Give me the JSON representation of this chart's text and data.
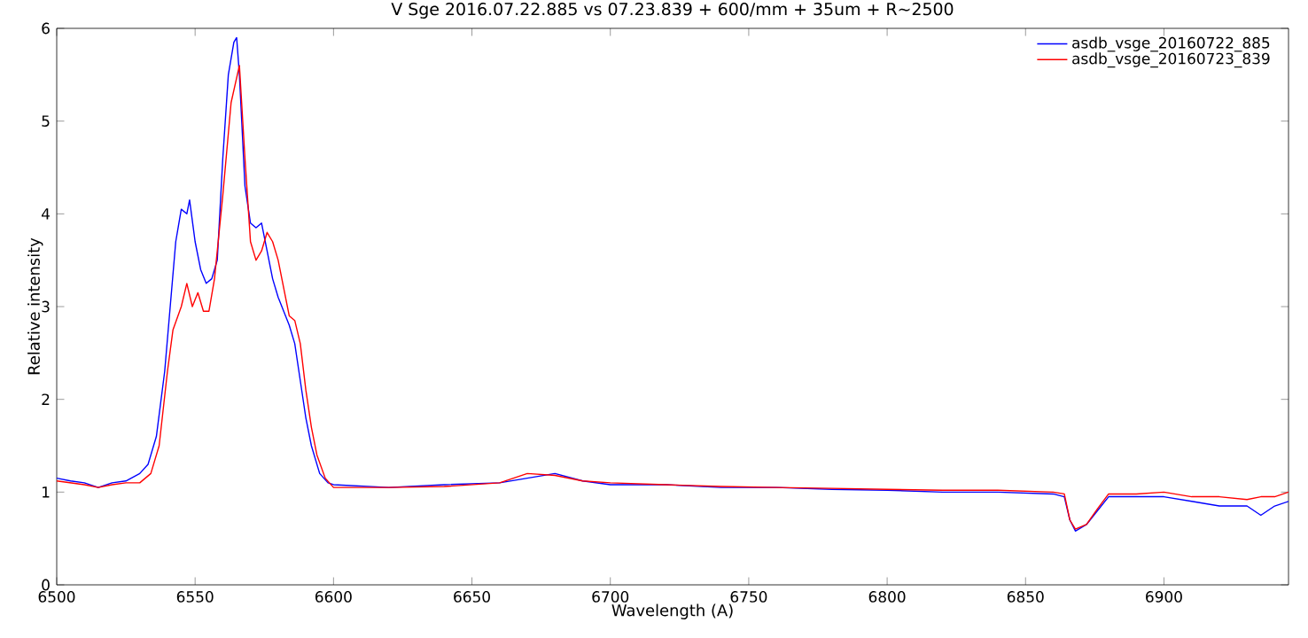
{
  "chart_data": {
    "type": "line",
    "title": "V Sge 2016.07.22.885 vs 07.23.839 + 600/mm + 35um + R~2500",
    "xlabel": "Wavelength (A)",
    "ylabel": "Relative intensity",
    "xlim": [
      6500,
      6945
    ],
    "ylim": [
      0,
      6
    ],
    "xticks": [
      6500,
      6550,
      6600,
      6650,
      6700,
      6750,
      6800,
      6850,
      6900
    ],
    "yticks": [
      0,
      1,
      2,
      3,
      4,
      5,
      6
    ],
    "legend": "top right",
    "grid": false,
    "marker": "none",
    "line_style": "solid",
    "series": [
      {
        "name": "asdb_vsge_20160722_885",
        "color": "#0000ff",
        "x": [
          6500,
          6505,
          6510,
          6515,
          6520,
          6525,
          6530,
          6533,
          6536,
          6539,
          6541,
          6543,
          6545,
          6547,
          6548,
          6550,
          6552,
          6554,
          6556,
          6558,
          6560,
          6562,
          6564,
          6565,
          6566,
          6568,
          6570,
          6572,
          6574,
          6576,
          6578,
          6580,
          6582,
          6584,
          6586,
          6588,
          6590,
          6592,
          6595,
          6598,
          6600,
          6620,
          6640,
          6660,
          6670,
          6680,
          6690,
          6700,
          6720,
          6740,
          6760,
          6780,
          6800,
          6820,
          6840,
          6860,
          6864,
          6866,
          6868,
          6872,
          6876,
          6880,
          6890,
          6900,
          6910,
          6920,
          6930,
          6935,
          6940,
          6945
        ],
        "values": [
          1.15,
          1.12,
          1.1,
          1.05,
          1.1,
          1.12,
          1.2,
          1.3,
          1.6,
          2.3,
          3.0,
          3.7,
          4.05,
          4.0,
          4.15,
          3.7,
          3.4,
          3.25,
          3.3,
          3.5,
          4.6,
          5.5,
          5.85,
          5.9,
          5.5,
          4.3,
          3.9,
          3.85,
          3.9,
          3.6,
          3.3,
          3.1,
          2.95,
          2.8,
          2.6,
          2.2,
          1.8,
          1.5,
          1.2,
          1.1,
          1.08,
          1.05,
          1.08,
          1.1,
          1.15,
          1.2,
          1.12,
          1.08,
          1.08,
          1.05,
          1.05,
          1.03,
          1.02,
          1.0,
          1.0,
          0.98,
          0.95,
          0.7,
          0.58,
          0.65,
          0.8,
          0.95,
          0.95,
          0.95,
          0.9,
          0.85,
          0.85,
          0.75,
          0.85,
          0.9
        ]
      },
      {
        "name": "asdb_vsge_20160723_839",
        "color": "#ff0000",
        "x": [
          6500,
          6505,
          6510,
          6515,
          6520,
          6525,
          6530,
          6534,
          6537,
          6540,
          6542,
          6545,
          6547,
          6549,
          6551,
          6553,
          6555,
          6557,
          6560,
          6563,
          6566,
          6568,
          6570,
          6572,
          6574,
          6576,
          6578,
          6580,
          6582,
          6584,
          6586,
          6588,
          6590,
          6592,
          6594,
          6597,
          6600,
          6620,
          6640,
          6660,
          6670,
          6680,
          6690,
          6700,
          6720,
          6740,
          6760,
          6780,
          6800,
          6820,
          6840,
          6860,
          6864,
          6866,
          6868,
          6872,
          6876,
          6880,
          6890,
          6900,
          6910,
          6920,
          6930,
          6935,
          6940,
          6945
        ],
        "values": [
          1.12,
          1.1,
          1.08,
          1.05,
          1.08,
          1.1,
          1.1,
          1.2,
          1.5,
          2.3,
          2.75,
          3.0,
          3.25,
          3.0,
          3.15,
          2.95,
          2.95,
          3.3,
          4.2,
          5.2,
          5.6,
          4.6,
          3.7,
          3.5,
          3.6,
          3.8,
          3.7,
          3.5,
          3.2,
          2.9,
          2.85,
          2.6,
          2.1,
          1.7,
          1.4,
          1.15,
          1.05,
          1.05,
          1.06,
          1.1,
          1.2,
          1.18,
          1.12,
          1.1,
          1.08,
          1.06,
          1.05,
          1.04,
          1.03,
          1.02,
          1.02,
          1.0,
          0.98,
          0.7,
          0.6,
          0.65,
          0.82,
          0.98,
          0.98,
          1.0,
          0.95,
          0.95,
          0.92,
          0.95,
          0.95,
          1.0
        ]
      }
    ]
  }
}
